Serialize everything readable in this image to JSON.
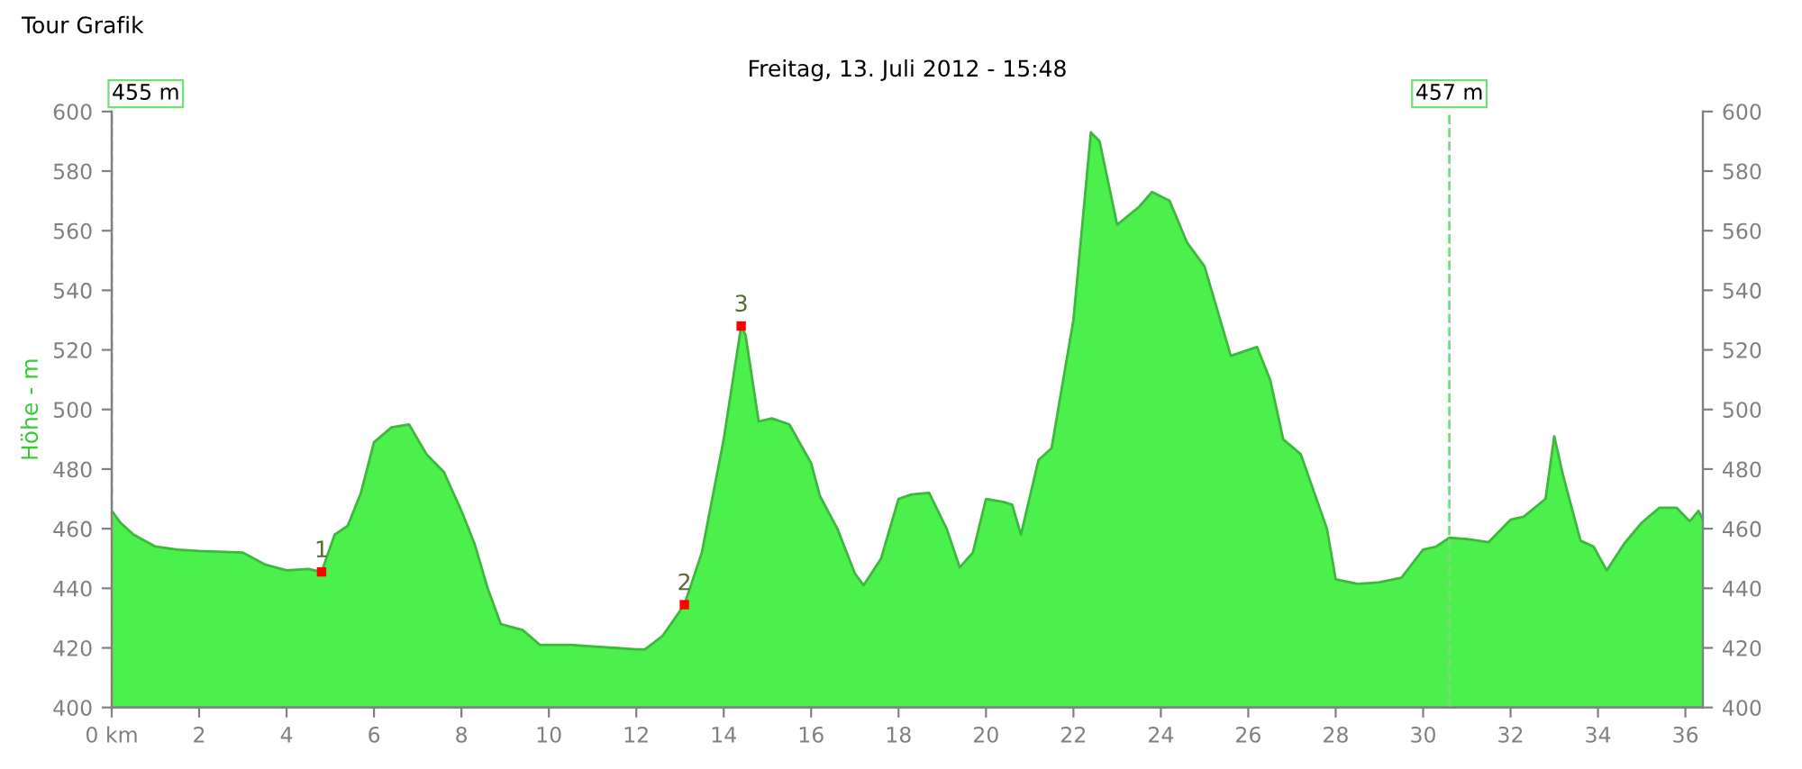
{
  "chart_data": {
    "type": "area",
    "title": "Freitag, 13. Juli 2012 - 15:48",
    "ylabel": "Höhe - m",
    "annotations": [
      "Tour Grafik",
      {
        "text": "1",
        "x": 4.8,
        "y": 445.5
      },
      {
        "text": "2",
        "x": 13.1,
        "y": 434.5
      },
      {
        "text": "3",
        "x": 14.4,
        "y": 528
      }
    ],
    "xlim": [
      0,
      36.4
    ],
    "xticks": [
      {
        "value": 0,
        "label": "0 km"
      },
      2,
      4,
      6,
      8,
      10,
      12,
      14,
      16,
      18,
      20,
      22,
      24,
      26,
      28,
      30,
      32,
      34,
      36
    ],
    "ylim": [
      400,
      600
    ],
    "yticks": [
      400,
      420,
      440,
      460,
      480,
      500,
      520,
      540,
      560,
      580,
      600
    ],
    "y2lim": [
      400,
      600
    ],
    "y2ticks": [
      400,
      420,
      440,
      460,
      480,
      500,
      520,
      540,
      560,
      580,
      600
    ],
    "grid": false,
    "ref_lines": [
      {
        "axis": "x",
        "value": 0,
        "label": "455 m",
        "color": "#77dd77",
        "line_style": "dashed"
      },
      {
        "axis": "x",
        "value": 30.6,
        "label": "457 m",
        "color": "#77dd77",
        "line_style": "dashed"
      }
    ],
    "series": [
      {
        "color": "#4cf04c",
        "x": [
          0,
          0.2,
          0.5,
          1,
          1.5,
          2,
          3,
          3.5,
          4,
          4.5,
          4.8,
          5.1,
          5.4,
          5.7,
          6,
          6.4,
          6.8,
          7.2,
          7.6,
          8,
          8.3,
          8.6,
          8.9,
          9.4,
          9.8,
          10.5,
          11,
          11.5,
          12,
          12.2,
          12.6,
          13.1,
          13.5,
          14,
          14.4,
          14.5,
          14.8,
          15.1,
          15.5,
          16,
          16.2,
          16.6,
          17,
          17.2,
          17.6,
          18,
          18.3,
          18.7,
          19.1,
          19.4,
          19.7,
          20,
          20.4,
          20.6,
          20.8,
          21.2,
          21.5,
          22,
          22.4,
          22.6,
          23,
          23.5,
          23.8,
          24.2,
          24.6,
          25,
          25.4,
          25.6,
          26,
          26.2,
          26.5,
          26.8,
          27.2,
          27.8,
          28,
          28.5,
          29,
          29.5,
          30,
          30.3,
          30.6,
          31,
          31.5,
          32,
          32.3,
          32.8,
          33,
          33.2,
          33.6,
          33.9,
          34.2,
          34.6,
          35,
          35.4,
          35.8,
          36.1,
          36.3,
          36.4
        ],
        "values": [
          466,
          462,
          458,
          454,
          453,
          452.5,
          452,
          448,
          446,
          446.5,
          445.5,
          458,
          461,
          472,
          489,
          494,
          495,
          485,
          479,
          466,
          455,
          440,
          428,
          426,
          421,
          421,
          420.5,
          420,
          419.5,
          419.5,
          424,
          434.5,
          452,
          490,
          528,
          525,
          496,
          497,
          495,
          482,
          471,
          460,
          445,
          441,
          450,
          470,
          471.5,
          472,
          460,
          447,
          452,
          470,
          469,
          468,
          458,
          483,
          487,
          530,
          593,
          590,
          562,
          568,
          573,
          570,
          556,
          548,
          528,
          518,
          520,
          521,
          510,
          490,
          485,
          460,
          443,
          441.5,
          442,
          443.5,
          453,
          454,
          457,
          456.5,
          455.5,
          463,
          464,
          470,
          491,
          478,
          456,
          454,
          446,
          455,
          462,
          467,
          467,
          462.5,
          466,
          463
        ]
      },
      {
        "type": "scatter",
        "color": "#ff0000",
        "marker": "square",
        "x": [
          4.8,
          13.1,
          14.4
        ],
        "values": [
          445.5,
          434.5,
          528
        ]
      }
    ]
  }
}
